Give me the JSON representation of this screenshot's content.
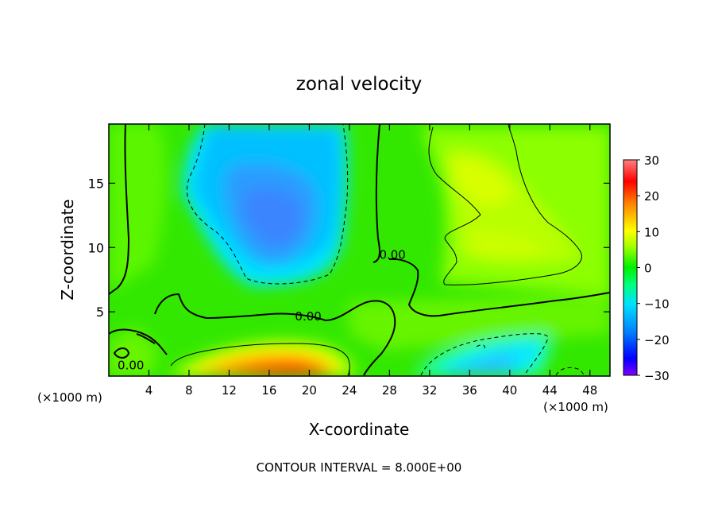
{
  "chart_data": {
    "type": "heatmap",
    "title": "zonal velocity",
    "xlabel": "X-coordinate",
    "ylabel": "Z-coordinate",
    "x_unit_left": "(×1000 m)",
    "x_unit_right": "(×1000 m)",
    "xlim": [
      0,
      50
    ],
    "ylim": [
      0,
      19.6
    ],
    "x_ticks": [
      4,
      8,
      12,
      16,
      20,
      24,
      28,
      32,
      36,
      40,
      44,
      48
    ],
    "y_ticks": [
      5,
      10,
      15
    ],
    "colorbar": {
      "range": [
        -30,
        30
      ],
      "ticks": [
        30,
        20,
        10,
        0,
        -10,
        -20,
        -30
      ],
      "tick_labels": [
        "30",
        "20",
        "10",
        "0",
        "−10",
        "−20",
        "−30"
      ],
      "colors": [
        "#7f00ff",
        "#0000ff",
        "#0080ff",
        "#00e0ff",
        "#00ff80",
        "#00f000",
        "#a8ff00",
        "#ffff00",
        "#ff8000",
        "#ff0000",
        "#ff8080"
      ]
    },
    "contour_labels": [
      {
        "text": "0.00",
        "x": 2.2,
        "z": 0.9
      },
      {
        "text": "0.00",
        "x": 28.3,
        "z": 9.5
      },
      {
        "text": "0.00",
        "x": 19.9,
        "z": 4.7
      }
    ],
    "footer": "CONTOUR INTERVAL = 8.000E+00"
  }
}
